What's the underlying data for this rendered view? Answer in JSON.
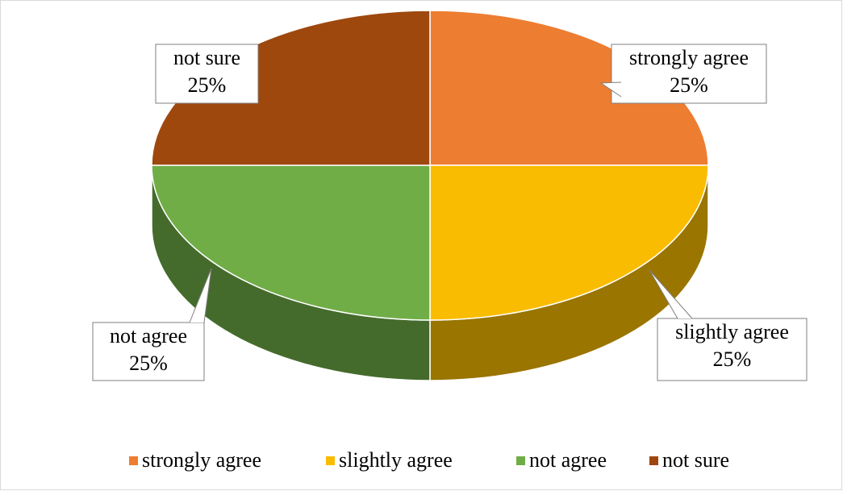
{
  "chart_data": {
    "type": "pie",
    "categories": [
      "strongly agree",
      "slightly agree",
      "not agree",
      "not sure"
    ],
    "values": [
      25,
      25,
      25,
      25
    ],
    "value_labels": [
      "25%",
      "25%",
      "25%",
      "25%"
    ],
    "colors": [
      "#ED7D31",
      "#F9BC00",
      "#70AD47",
      "#9E480E"
    ],
    "legend": "bottom"
  }
}
